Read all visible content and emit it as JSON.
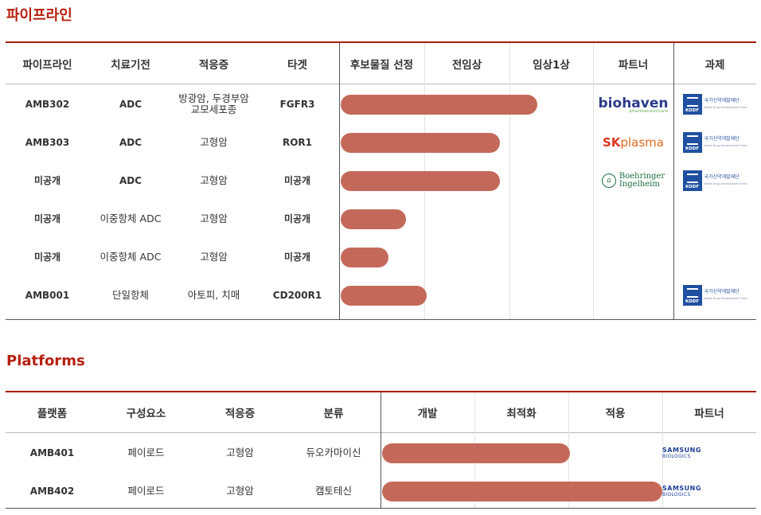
{
  "pipeline": {
    "title": "파이프라인",
    "headers": [
      "파이프라인",
      "치료기전",
      "적응증",
      "타겟",
      "후보물질 선정",
      "전임상",
      "임상1상",
      "파트너",
      "과제"
    ],
    "rows": [
      {
        "name": "AMB302",
        "mechanism": "ADC",
        "indication": "방광암, 두경부암\n교모세포종",
        "target": "FGFR3",
        "progress": 0.78,
        "partner": "biohaven",
        "grant": "KDDF"
      },
      {
        "name": "AMB303",
        "mechanism": "ADC",
        "indication": "고형암",
        "target": "ROR1",
        "progress": 0.63,
        "partner": "SK plasma",
        "grant": "KDDF"
      },
      {
        "name": "미공개",
        "mechanism": "ADC",
        "indication": "고형암",
        "target": "미공개",
        "progress": 0.63,
        "partner": "Boehringer Ingelheim",
        "grant": "KDDF"
      },
      {
        "name": "미공개",
        "mechanism": "이중항체 ADC",
        "indication": "고형암",
        "target": "미공개",
        "progress": 0.26,
        "partner": "",
        "grant": ""
      },
      {
        "name": "미공개",
        "mechanism": "이중항체 ADC",
        "indication": "고형암",
        "target": "미공개",
        "progress": 0.19,
        "partner": "",
        "grant": ""
      },
      {
        "name": "AMB001",
        "mechanism": "단일항체",
        "indication": "아토피, 치매",
        "target": "CD200R1",
        "progress": 0.34,
        "partner": "",
        "grant": "KDDF"
      }
    ]
  },
  "platforms": {
    "title": "Platforms",
    "headers": [
      "플랫폼",
      "구성요소",
      "적응증",
      "분류",
      "개발",
      "최적화",
      "적용",
      "파트너"
    ],
    "rows": [
      {
        "name": "AMB401",
        "component": "페이로드",
        "indication": "고형암",
        "category": "듀오카마이신",
        "progress": 0.67,
        "partner": "SAMSUNG BIOLOGICS"
      },
      {
        "name": "AMB402",
        "component": "페이로드",
        "indication": "고형암",
        "category": "캠토테신",
        "progress": 1.0,
        "partner": "SAMSUNG BIOLOGICS"
      }
    ]
  },
  "logos": {
    "biohaven": {
      "main": "biohaven",
      "sub": "pharmaceuticals"
    },
    "skplasma": {
      "a": "SK",
      "b": "plasma"
    },
    "boehringer": {
      "l1": "Boehringer",
      "l2": "Ingelheim"
    },
    "kddf": {
      "abbr": "KDDF",
      "name": "국가신약개발재단",
      "en": "Korea Drug Development Fund"
    },
    "samsung": {
      "l1": "SAMSUNG",
      "l2": "BIOLOGICS"
    }
  },
  "colors": {
    "accent": "#b5200e",
    "bar": "#c4695a"
  }
}
